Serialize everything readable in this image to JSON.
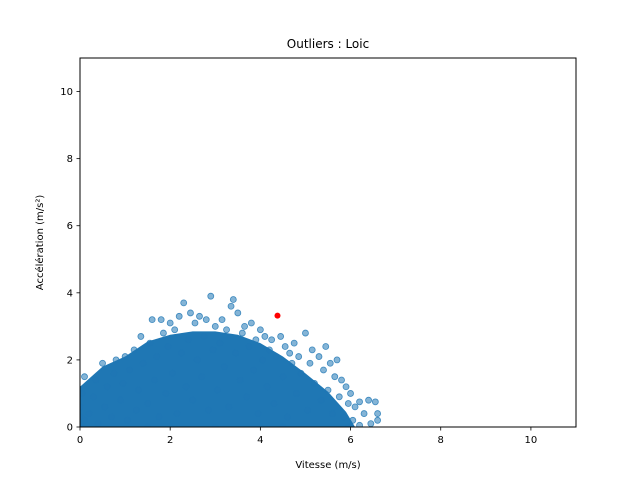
{
  "chart_data": {
    "type": "scatter",
    "title": "Outliers : Loic",
    "xlabel": "Vitesse (m/s)",
    "ylabel": "Accélération (m/s²)",
    "xlim": [
      0,
      11
    ],
    "ylim": [
      0,
      11
    ],
    "xticks": [
      0,
      2,
      4,
      6,
      8,
      10
    ],
    "yticks": [
      0,
      2,
      4,
      6,
      8,
      10
    ],
    "grid": false,
    "legend": "none",
    "series": [
      {
        "color": "#1f77b4",
        "opacity": 0.55,
        "points": [
          [
            0.0,
            0.05
          ],
          [
            0.0,
            0.3
          ],
          [
            0.0,
            0.6
          ],
          [
            0.05,
            1.0
          ],
          [
            0.1,
            1.5
          ],
          [
            0.1,
            0.2
          ],
          [
            0.2,
            0.4
          ],
          [
            0.3,
            0.9
          ],
          [
            0.35,
            1.4
          ],
          [
            0.4,
            0.1
          ],
          [
            0.5,
            1.9
          ],
          [
            0.55,
            0.6
          ],
          [
            0.6,
            1.2
          ],
          [
            0.7,
            0.3
          ],
          [
            0.75,
            1.6
          ],
          [
            0.8,
            2.0
          ],
          [
            0.9,
            0.8
          ],
          [
            0.95,
            1.3
          ],
          [
            1.0,
            2.1
          ],
          [
            1.05,
            0.2
          ],
          [
            1.1,
            1.7
          ],
          [
            1.2,
            2.3
          ],
          [
            1.25,
            0.5
          ],
          [
            1.3,
            1.1
          ],
          [
            1.35,
            2.7
          ],
          [
            1.4,
            1.9
          ],
          [
            1.5,
            0.7
          ],
          [
            1.55,
            2.5
          ],
          [
            1.6,
            3.2
          ],
          [
            1.65,
            1.4
          ],
          [
            1.7,
            2.1
          ],
          [
            1.75,
            0.3
          ],
          [
            1.8,
            3.2
          ],
          [
            1.85,
            2.8
          ],
          [
            1.9,
            1.0
          ],
          [
            1.95,
            2.4
          ],
          [
            2.0,
            3.1
          ],
          [
            2.05,
            1.6
          ],
          [
            2.1,
            2.9
          ],
          [
            2.15,
            0.4
          ],
          [
            2.2,
            3.3
          ],
          [
            2.25,
            2.2
          ],
          [
            2.3,
            3.7
          ],
          [
            2.35,
            1.2
          ],
          [
            2.4,
            2.6
          ],
          [
            2.45,
            3.4
          ],
          [
            2.5,
            0.8
          ],
          [
            2.55,
            3.1
          ],
          [
            2.6,
            2.0
          ],
          [
            2.65,
            3.3
          ],
          [
            2.7,
            1.5
          ],
          [
            2.75,
            2.7
          ],
          [
            2.8,
            3.2
          ],
          [
            2.85,
            0.5
          ],
          [
            2.9,
            3.9
          ],
          [
            2.95,
            2.3
          ],
          [
            3.0,
            3.0
          ],
          [
            3.05,
            1.1
          ],
          [
            3.1,
            2.5
          ],
          [
            3.15,
            3.2
          ],
          [
            3.2,
            1.8
          ],
          [
            3.25,
            2.9
          ],
          [
            3.3,
            0.6
          ],
          [
            3.35,
            3.6
          ],
          [
            3.4,
            3.8
          ],
          [
            3.45,
            2.2
          ],
          [
            3.5,
            3.4
          ],
          [
            3.55,
            1.4
          ],
          [
            3.6,
            2.8
          ],
          [
            3.65,
            3.0
          ],
          [
            3.7,
            0.9
          ],
          [
            3.75,
            2.4
          ],
          [
            3.8,
            3.1
          ],
          [
            3.85,
            1.7
          ],
          [
            3.9,
            2.6
          ],
          [
            3.95,
            0.4
          ],
          [
            4.0,
            2.9
          ],
          [
            4.05,
            2.0
          ],
          [
            4.1,
            2.7
          ],
          [
            4.15,
            1.2
          ],
          [
            4.2,
            2.3
          ],
          [
            4.25,
            2.6
          ],
          [
            4.3,
            0.7
          ],
          [
            4.35,
            2.1
          ],
          [
            4.45,
            2.7
          ],
          [
            4.5,
            1.5
          ],
          [
            4.55,
            2.4
          ],
          [
            4.6,
            0.3
          ],
          [
            4.65,
            2.2
          ],
          [
            4.7,
            1.9
          ],
          [
            4.75,
            2.5
          ],
          [
            4.8,
            1.0
          ],
          [
            4.85,
            2.1
          ],
          [
            4.9,
            1.6
          ],
          [
            5.0,
            2.8
          ],
          [
            5.05,
            0.5
          ],
          [
            5.1,
            1.9
          ],
          [
            5.15,
            2.3
          ],
          [
            5.2,
            1.3
          ],
          [
            5.3,
            2.1
          ],
          [
            5.35,
            0.8
          ],
          [
            5.4,
            1.7
          ],
          [
            5.45,
            2.4
          ],
          [
            5.5,
            1.1
          ],
          [
            5.55,
            1.9
          ],
          [
            5.6,
            0.4
          ],
          [
            5.65,
            1.5
          ],
          [
            5.7,
            2.0
          ],
          [
            5.75,
            0.9
          ],
          [
            5.8,
            1.4
          ],
          [
            5.85,
            0.3
          ],
          [
            5.9,
            1.2
          ],
          [
            5.95,
            0.7
          ],
          [
            6.0,
            1.0
          ],
          [
            6.05,
            0.2
          ],
          [
            6.1,
            0.6
          ],
          [
            6.2,
            0.75
          ],
          [
            6.3,
            0.4
          ],
          [
            6.4,
            0.8
          ],
          [
            6.45,
            0.1
          ],
          [
            6.55,
            0.75
          ],
          [
            6.6,
            0.4
          ],
          [
            6.6,
            0.2
          ],
          [
            6.2,
            0.05
          ],
          [
            5.95,
            0.0
          ],
          [
            3.0,
            0.0
          ],
          [
            1.5,
            0.0
          ],
          [
            4.5,
            0.0
          ]
        ]
      },
      {
        "color": "#ff0000",
        "opacity": 1,
        "points": [
          [
            4.38,
            3.32
          ]
        ]
      }
    ]
  }
}
